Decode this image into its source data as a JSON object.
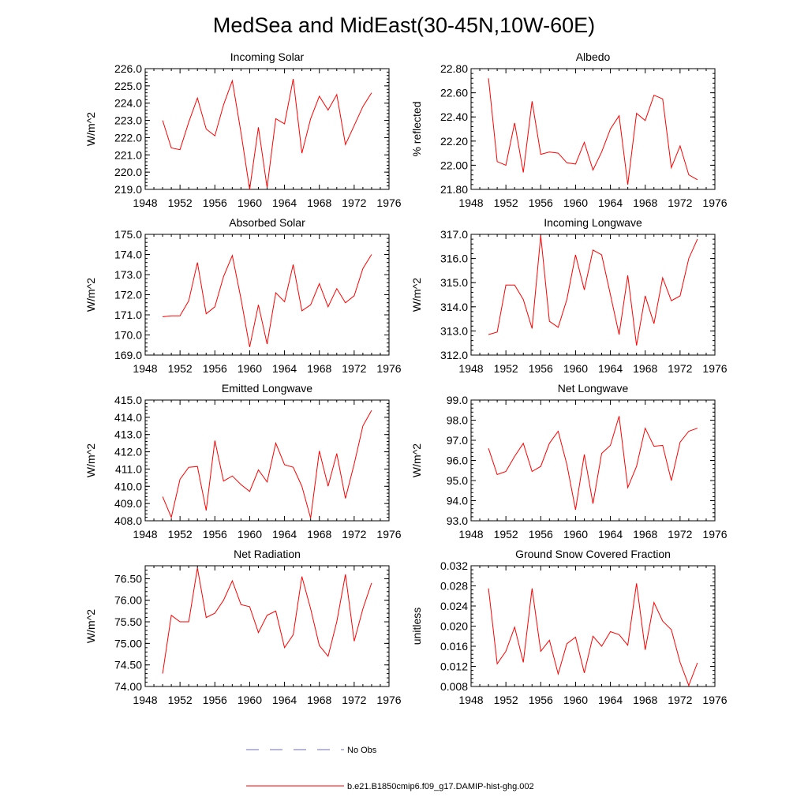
{
  "figure": {
    "title": "MedSea and MidEast(30-45N,10W-60E)"
  },
  "colors": {
    "model_line": "#ff0000",
    "obs_line": "#6b6bd6",
    "axis": "#000000"
  },
  "legend": {
    "entries": [
      {
        "label": "No Obs",
        "style": "dashed",
        "color": "#6b6bd6"
      },
      {
        "label": "b.e21.B1850cmip6.f09_g17.DAMIP-hist-ghg.002",
        "style": "solid",
        "color": "#ff0000"
      }
    ]
  },
  "chart_data": [
    {
      "type": "line",
      "title": "Incoming Solar",
      "ylabel": "W/m^2",
      "xlim": [
        1948,
        1976
      ],
      "xticks": [
        1948,
        1952,
        1956,
        1960,
        1964,
        1968,
        1972,
        1976
      ],
      "ylim": [
        219.0,
        226.0
      ],
      "yticks": [
        "219.0",
        "220.0",
        "221.0",
        "222.0",
        "223.0",
        "224.0",
        "225.0",
        "226.0"
      ],
      "series": [
        {
          "x": [
            1950,
            1951,
            1952,
            1953,
            1954,
            1955,
            1956,
            1957,
            1958,
            1959,
            1960,
            1961,
            1962,
            1963,
            1964,
            1965,
            1966,
            1967,
            1968,
            1969,
            1970,
            1971,
            1972,
            1973,
            1974
          ],
          "y": [
            223.0,
            221.4,
            221.3,
            222.9,
            224.3,
            222.5,
            222.1,
            223.9,
            225.3,
            222.3,
            219.0,
            222.6,
            219.1,
            223.1,
            222.8,
            225.4,
            221.1,
            223.1,
            224.4,
            223.6,
            224.5,
            221.6,
            222.7,
            223.8,
            224.6
          ]
        }
      ]
    },
    {
      "type": "line",
      "title": "Albedo",
      "ylabel": "% reflected",
      "xlim": [
        1948,
        1976
      ],
      "xticks": [
        1948,
        1952,
        1956,
        1960,
        1964,
        1968,
        1972,
        1976
      ],
      "ylim": [
        21.8,
        22.8
      ],
      "yticks": [
        "21.80",
        "22.00",
        "22.20",
        "22.40",
        "22.60",
        "22.80"
      ],
      "series": [
        {
          "x": [
            1950,
            1951,
            1952,
            1953,
            1954,
            1955,
            1956,
            1957,
            1958,
            1959,
            1960,
            1961,
            1962,
            1963,
            1964,
            1965,
            1966,
            1967,
            1968,
            1969,
            1970,
            1971,
            1972,
            1973,
            1974
          ],
          "y": [
            22.72,
            22.03,
            22.0,
            22.35,
            21.94,
            22.53,
            22.09,
            22.11,
            22.1,
            22.02,
            22.01,
            22.19,
            21.96,
            22.11,
            22.3,
            22.41,
            21.84,
            22.43,
            22.37,
            22.58,
            22.55,
            21.98,
            22.16,
            21.92,
            21.88
          ]
        }
      ]
    },
    {
      "type": "line",
      "title": "Absorbed Solar",
      "ylabel": "W/m^2",
      "xlim": [
        1948,
        1976
      ],
      "xticks": [
        1948,
        1952,
        1956,
        1960,
        1964,
        1968,
        1972,
        1976
      ],
      "ylim": [
        169.0,
        175.0
      ],
      "yticks": [
        "169.0",
        "170.0",
        "171.0",
        "172.0",
        "173.0",
        "174.0",
        "175.0"
      ],
      "series": [
        {
          "x": [
            1950,
            1951,
            1952,
            1953,
            1954,
            1955,
            1956,
            1957,
            1958,
            1959,
            1960,
            1961,
            1962,
            1963,
            1964,
            1965,
            1966,
            1967,
            1968,
            1969,
            1970,
            1971,
            1972,
            1973,
            1974
          ],
          "y": [
            170.9,
            170.95,
            170.95,
            171.7,
            173.6,
            171.05,
            171.4,
            172.9,
            173.95,
            171.8,
            169.4,
            171.5,
            169.55,
            172.1,
            171.65,
            173.5,
            171.2,
            171.5,
            172.55,
            171.4,
            172.3,
            171.6,
            171.95,
            173.3,
            174.0
          ]
        }
      ]
    },
    {
      "type": "line",
      "title": "Incoming Longwave",
      "ylabel": "W/m^2",
      "xlim": [
        1948,
        1976
      ],
      "xticks": [
        1948,
        1952,
        1956,
        1960,
        1964,
        1968,
        1972,
        1976
      ],
      "ylim": [
        312.0,
        317.0
      ],
      "yticks": [
        "312.0",
        "313.0",
        "314.0",
        "315.0",
        "316.0",
        "317.0"
      ],
      "series": [
        {
          "x": [
            1950,
            1951,
            1952,
            1953,
            1954,
            1955,
            1956,
            1957,
            1958,
            1959,
            1960,
            1961,
            1962,
            1963,
            1964,
            1965,
            1966,
            1967,
            1968,
            1969,
            1970,
            1971,
            1972,
            1973,
            1974
          ],
          "y": [
            312.85,
            312.95,
            314.9,
            314.9,
            314.3,
            313.1,
            316.95,
            313.4,
            313.15,
            314.3,
            316.15,
            314.7,
            316.35,
            316.15,
            314.5,
            312.85,
            315.3,
            312.4,
            314.45,
            313.3,
            315.2,
            314.25,
            314.45,
            316.0,
            316.8
          ]
        }
      ]
    },
    {
      "type": "line",
      "title": "Emitted Longwave",
      "ylabel": "W/m^2",
      "xlim": [
        1948,
        1976
      ],
      "xticks": [
        1948,
        1952,
        1956,
        1960,
        1964,
        1968,
        1972,
        1976
      ],
      "ylim": [
        408.0,
        415.0
      ],
      "yticks": [
        "408.0",
        "409.0",
        "410.0",
        "411.0",
        "412.0",
        "413.0",
        "414.0",
        "415.0"
      ],
      "series": [
        {
          "x": [
            1950,
            1951,
            1952,
            1953,
            1954,
            1955,
            1956,
            1957,
            1958,
            1959,
            1960,
            1961,
            1962,
            1963,
            1964,
            1965,
            1966,
            1967,
            1968,
            1969,
            1970,
            1971,
            1972,
            1973,
            1974
          ],
          "y": [
            409.4,
            408.2,
            410.4,
            411.1,
            411.15,
            408.6,
            412.65,
            410.3,
            410.6,
            410.1,
            409.7,
            410.95,
            410.25,
            412.5,
            411.25,
            411.1,
            410.0,
            408.15,
            412.05,
            410.0,
            411.9,
            409.3,
            411.3,
            413.5,
            414.4
          ]
        }
      ]
    },
    {
      "type": "line",
      "title": "Net Longwave",
      "ylabel": "W/m^2",
      "xlim": [
        1948,
        1976
      ],
      "xticks": [
        1948,
        1952,
        1956,
        1960,
        1964,
        1968,
        1972,
        1976
      ],
      "ylim": [
        93.0,
        99.0
      ],
      "yticks": [
        "93.0",
        "94.0",
        "95.0",
        "96.0",
        "97.0",
        "98.0",
        "99.0"
      ],
      "series": [
        {
          "x": [
            1950,
            1951,
            1952,
            1953,
            1954,
            1955,
            1956,
            1957,
            1958,
            1959,
            1960,
            1961,
            1962,
            1963,
            1964,
            1965,
            1966,
            1967,
            1968,
            1969,
            1970,
            1971,
            1972,
            1973,
            1974
          ],
          "y": [
            96.6,
            95.3,
            95.45,
            96.2,
            96.85,
            95.45,
            95.7,
            96.85,
            97.45,
            95.8,
            93.55,
            96.3,
            93.85,
            96.35,
            96.75,
            98.2,
            94.65,
            95.7,
            97.6,
            96.7,
            96.75,
            95.0,
            96.9,
            97.45,
            97.6
          ]
        }
      ]
    },
    {
      "type": "line",
      "title": "Net Radiation",
      "ylabel": "W/m^2",
      "xlim": [
        1948,
        1976
      ],
      "xticks": [
        1948,
        1952,
        1956,
        1960,
        1964,
        1968,
        1972,
        1976
      ],
      "ylim": [
        74.0,
        76.8
      ],
      "yticks": [
        "74.00",
        "74.50",
        "75.00",
        "75.50",
        "76.00",
        "76.50"
      ],
      "ytick_values": [
        74.0,
        74.5,
        75.0,
        75.5,
        76.0,
        76.5
      ],
      "series": [
        {
          "x": [
            1950,
            1951,
            1952,
            1953,
            1954,
            1955,
            1956,
            1957,
            1958,
            1959,
            1960,
            1961,
            1962,
            1963,
            1964,
            1965,
            1966,
            1967,
            1968,
            1969,
            1970,
            1971,
            1972,
            1973,
            1974
          ],
          "y": [
            74.3,
            75.65,
            75.5,
            75.5,
            76.75,
            75.6,
            75.7,
            76.0,
            76.45,
            75.9,
            75.85,
            75.25,
            75.65,
            75.75,
            74.9,
            75.2,
            76.55,
            75.8,
            74.95,
            74.7,
            75.5,
            76.6,
            75.05,
            75.8,
            76.4
          ]
        }
      ]
    },
    {
      "type": "line",
      "title": "Ground Snow Covered Fraction",
      "ylabel": "unitless",
      "xlim": [
        1948,
        1976
      ],
      "xticks": [
        1948,
        1952,
        1956,
        1960,
        1964,
        1968,
        1972,
        1976
      ],
      "ylim": [
        0.008,
        0.032
      ],
      "yticks": [
        "0.008",
        "0.012",
        "0.016",
        "0.020",
        "0.024",
        "0.028",
        "0.032"
      ],
      "series": [
        {
          "x": [
            1950,
            1951,
            1952,
            1953,
            1954,
            1955,
            1956,
            1957,
            1958,
            1959,
            1960,
            1961,
            1962,
            1963,
            1964,
            1965,
            1966,
            1967,
            1968,
            1969,
            1970,
            1971,
            1972,
            1973,
            1974
          ],
          "y": [
            0.0275,
            0.0125,
            0.015,
            0.0198,
            0.0128,
            0.0275,
            0.015,
            0.0172,
            0.0105,
            0.0165,
            0.0178,
            0.0107,
            0.018,
            0.016,
            0.0189,
            0.0183,
            0.0162,
            0.0285,
            0.0153,
            0.0247,
            0.021,
            0.0193,
            0.0128,
            0.0082,
            0.0127
          ]
        }
      ]
    }
  ]
}
